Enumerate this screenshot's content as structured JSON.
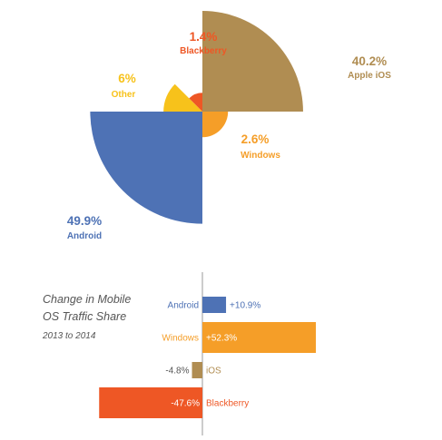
{
  "colors": {
    "android": "#4e72b5",
    "apple": "#b08d52",
    "windows": "#f59e28",
    "other": "#f7c21b",
    "blackberry": "#ee5725",
    "axis": "#999999",
    "text_gray": "#555555"
  },
  "chart_data": [
    {
      "type": "pie",
      "subtype": "polar-area",
      "slices": [
        {
          "name": "Apple iOS",
          "value": 40.2,
          "label": "40.2%",
          "color": "#b08d52"
        },
        {
          "name": "Windows",
          "value": 2.6,
          "label": "2.6%",
          "color": "#f59e28"
        },
        {
          "name": "Android",
          "value": 49.9,
          "label": "49.9%",
          "color": "#4e72b5"
        },
        {
          "name": "Other",
          "value": 6,
          "label": "6%",
          "color": "#f7c21b"
        },
        {
          "name": "Blackberry",
          "value": 1.4,
          "label": "1.4%",
          "color": "#ee5725"
        }
      ]
    },
    {
      "type": "bar",
      "orientation": "horizontal",
      "title": "Change in Mobile OS Traffic Share",
      "subtitle": "2013 to 2014",
      "categories": [
        "Android",
        "Windows",
        "iOS",
        "Blackberry"
      ],
      "values": [
        10.9,
        52.3,
        -4.8,
        -47.6
      ],
      "value_labels": [
        "+10.9%",
        "+52.3%",
        "-4.8%",
        "-47.6%"
      ],
      "colors": [
        "#4e72b5",
        "#f59e28",
        "#b08d52",
        "#ee5725"
      ],
      "xlim": [
        -52,
        56
      ]
    }
  ]
}
